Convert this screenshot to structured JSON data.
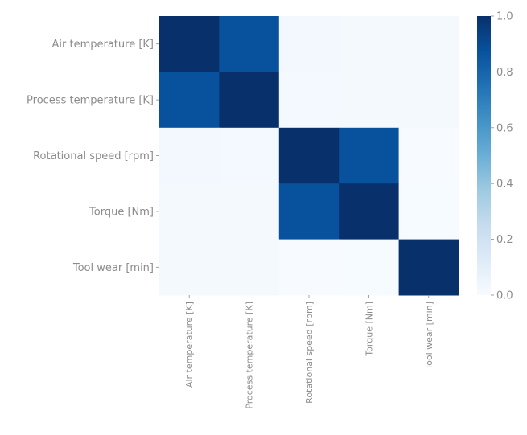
{
  "chart_data": {
    "type": "heatmap",
    "title": "",
    "xlabel": "",
    "ylabel": "",
    "x_categories": [
      "Air temperature [K]",
      "Process temperature [K]",
      "Rotational speed [rpm]",
      "Torque [Nm]",
      "Tool wear [min]"
    ],
    "y_categories": [
      "Air temperature [K]",
      "Process temperature [K]",
      "Rotational speed [rpm]",
      "Torque [Nm]",
      "Tool wear [min]"
    ],
    "matrix": [
      [
        1.0,
        0.876,
        0.023,
        0.014,
        0.014
      ],
      [
        0.876,
        1.0,
        0.019,
        0.014,
        0.013
      ],
      [
        0.023,
        0.019,
        1.0,
        0.875,
        0.0
      ],
      [
        0.014,
        0.014,
        0.875,
        1.0,
        0.003
      ],
      [
        0.014,
        0.013,
        0.0,
        0.003,
        1.0
      ]
    ],
    "colorscale": "Blues",
    "colorbar": {
      "min": 0.0,
      "max": 1.0,
      "ticks": [
        "0.0",
        "0.2",
        "0.4",
        "0.6",
        "0.8",
        "1.0"
      ]
    },
    "grid": false,
    "legend": "colorbar-right"
  }
}
